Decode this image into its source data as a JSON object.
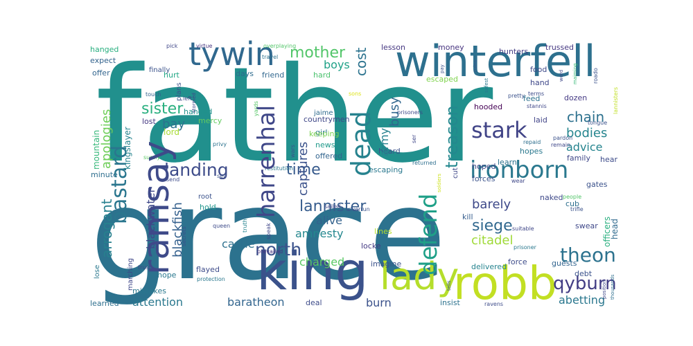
{
  "words": [
    {
      "text": "father",
      "color": "#21908d"
    },
    {
      "text": "grace",
      "color": "#2c728e"
    },
    {
      "text": "king",
      "color": "#3b528b"
    },
    {
      "text": "robb",
      "color": "#c2df23"
    },
    {
      "text": "winterfell",
      "color": "#2d708e"
    },
    {
      "text": "lady",
      "color": "#b5de2b"
    },
    {
      "text": "ramsay",
      "color": "#3e4a89"
    },
    {
      "text": "tywin",
      "color": "#30688e"
    },
    {
      "text": "harrenhal",
      "color": "#3f4788"
    },
    {
      "text": "dead",
      "color": "#26828e"
    },
    {
      "text": "defend",
      "color": "#1fa088"
    },
    {
      "text": "ironborn",
      "color": "#2a788e"
    },
    {
      "text": "bastard",
      "color": "#2a768e"
    },
    {
      "text": "treason",
      "color": "#23888e"
    },
    {
      "text": "stark",
      "color": "#414487"
    },
    {
      "text": "mother",
      "color": "#52c569"
    },
    {
      "text": "sister",
      "color": "#29af7f"
    },
    {
      "text": "landing",
      "color": "#3e4c8a"
    },
    {
      "text": "theon",
      "color": "#2c728e"
    },
    {
      "text": "qyburn",
      "color": "#433e85"
    },
    {
      "text": "north",
      "color": "#3b528b"
    },
    {
      "text": "lannister",
      "color": "#365c8d"
    },
    {
      "text": "siege",
      "color": "#31688e"
    },
    {
      "text": "time",
      "color": "#375a8c"
    },
    {
      "text": "bay",
      "color": "#2c738e"
    },
    {
      "text": "chain",
      "color": "#2d718e"
    },
    {
      "text": "bodies",
      "color": "#25858e"
    },
    {
      "text": "advice",
      "color": "#25848e"
    },
    {
      "text": "arrogant",
      "color": "#27808e"
    },
    {
      "text": "apologies",
      "color": "#6ece58"
    },
    {
      "text": "captures",
      "color": "#3b528b"
    },
    {
      "text": "army",
      "color": "#26818e"
    },
    {
      "text": "busy",
      "color": "#31678e"
    },
    {
      "text": "boys",
      "color": "#1fa187"
    },
    {
      "text": "cost",
      "color": "#2c738e"
    },
    {
      "text": "citadel",
      "color": "#a0da39"
    },
    {
      "text": "barely",
      "color": "#3e4989"
    },
    {
      "text": "alive",
      "color": "#33628d"
    },
    {
      "text": "amnesty",
      "color": "#24878e"
    },
    {
      "text": "castle",
      "color": "#2d708e"
    },
    {
      "text": "charged",
      "color": "#5ac864"
    },
    {
      "text": "blackwater",
      "color": "#3f4889"
    },
    {
      "text": "blackfish",
      "color": "#34608d"
    },
    {
      "text": "attention",
      "color": "#2a788e"
    },
    {
      "text": "baratheon",
      "color": "#32658e"
    },
    {
      "text": "burn",
      "color": "#3b528b"
    },
    {
      "text": "abetting",
      "color": "#2a778e"
    },
    {
      "text": "kingslayer",
      "color": "#25838e"
    },
    {
      "text": "mountain",
      "color": "#35b779"
    },
    {
      "text": "lord",
      "color": "#a8db34"
    },
    {
      "text": "hanged",
      "color": "#29af7f"
    },
    {
      "text": "expect",
      "color": "#33638d"
    },
    {
      "text": "offer",
      "color": "#32658e"
    },
    {
      "text": "hurt",
      "color": "#22a785"
    },
    {
      "text": "finally",
      "color": "#3b528b"
    },
    {
      "text": "friend",
      "color": "#31678e"
    },
    {
      "text": "days",
      "color": "#2f6c8e"
    },
    {
      "text": "lesson",
      "color": "#453781"
    },
    {
      "text": "money",
      "color": "#46337f"
    },
    {
      "text": "hunters",
      "color": "#433d84"
    },
    {
      "text": "trussed",
      "color": "#453882"
    },
    {
      "text": "escaped",
      "color": "#7fd34e"
    },
    {
      "text": "hard",
      "color": "#4ac16d"
    },
    {
      "text": "food",
      "color": "#3e4a89"
    },
    {
      "text": "hand",
      "color": "#3f4889"
    },
    {
      "text": "feed",
      "color": "#2c718e"
    },
    {
      "text": "laid",
      "color": "#414487"
    },
    {
      "text": "hooded",
      "color": "#440154"
    },
    {
      "text": "dozen",
      "color": "#443983"
    },
    {
      "text": "hopes",
      "color": "#2a788e"
    },
    {
      "text": "family",
      "color": "#3f4788"
    },
    {
      "text": "hear",
      "color": "#3e4c8a"
    },
    {
      "text": "gates",
      "color": "#3b528b"
    },
    {
      "text": "cub",
      "color": "#2e6f8e"
    },
    {
      "text": "countrymen",
      "color": "#3f4788"
    },
    {
      "text": "jaime",
      "color": "#2f6b8e"
    },
    {
      "text": "girl",
      "color": "#2a788e"
    },
    {
      "text": "keeping",
      "color": "#7ad151"
    },
    {
      "text": "news",
      "color": "#1f998a"
    },
    {
      "text": "offered",
      "color": "#32648e"
    },
    {
      "text": "escaping",
      "color": "#2a788e"
    },
    {
      "text": "hoped",
      "color": "#3f4889"
    },
    {
      "text": "forces",
      "color": "#3b528b"
    },
    {
      "text": "kill",
      "color": "#365d8d"
    },
    {
      "text": "naked",
      "color": "#3e4989"
    },
    {
      "text": "mercy",
      "color": "#63cb5f"
    },
    {
      "text": "handed",
      "color": "#20928c"
    },
    {
      "text": "lost",
      "color": "#453882"
    },
    {
      "text": "minute",
      "color": "#2e6e8e"
    },
    {
      "text": "hold",
      "color": "#1f958b"
    },
    {
      "text": "root",
      "color": "#3b528b"
    },
    {
      "text": "locke",
      "color": "#443a83"
    },
    {
      "text": "lines",
      "color": "#b5de2b"
    },
    {
      "text": "heard",
      "color": "#3b528b"
    },
    {
      "text": "cut",
      "color": "#3f4788"
    },
    {
      "text": "learn",
      "color": "#2c728e"
    },
    {
      "text": "force",
      "color": "#3e4c8a"
    },
    {
      "text": "guests",
      "color": "#32648e"
    },
    {
      "text": "debt",
      "color": "#3b528b"
    },
    {
      "text": "officers",
      "color": "#29af7f"
    },
    {
      "text": "head",
      "color": "#306a8e"
    },
    {
      "text": "swear",
      "color": "#3f4889"
    },
    {
      "text": "flayed",
      "color": "#3e4c8a"
    },
    {
      "text": "hope",
      "color": "#2a788e"
    },
    {
      "text": "marching",
      "color": "#3f4788"
    },
    {
      "text": "mistakes",
      "color": "#2a788e"
    },
    {
      "text": "lose",
      "color": "#2a788e"
    },
    {
      "text": "imagine",
      "color": "#3b528b"
    },
    {
      "text": "delivered",
      "color": "#25838e"
    },
    {
      "text": "learned",
      "color": "#2e6f8e"
    },
    {
      "text": "deal",
      "color": "#3e4c8a"
    },
    {
      "text": "insist",
      "color": "#2c728e"
    },
    {
      "text": "pick",
      "color": "#3f4788"
    },
    {
      "text": "virtue",
      "color": "#46337f"
    },
    {
      "text": "overplaying",
      "color": "#52c569"
    },
    {
      "text": "travel",
      "color": "#2c728e"
    },
    {
      "text": "touch",
      "color": "#33638d"
    },
    {
      "text": "plans",
      "color": "#3b528b"
    },
    {
      "text": "left",
      "color": "#3e4a89"
    },
    {
      "text": "stormed",
      "color": "#3f4788"
    },
    {
      "text": "yards",
      "color": "#56c667"
    },
    {
      "text": "sons",
      "color": "#dde318"
    },
    {
      "text": "wars",
      "color": "#3b528b"
    },
    {
      "text": "prisoners",
      "color": "#3e4a89"
    },
    {
      "text": "ser",
      "color": "#3f4788"
    },
    {
      "text": "pretty",
      "color": "#3b528b"
    },
    {
      "text": "terms",
      "color": "#3e4c8a"
    },
    {
      "text": "stannis",
      "color": "#3f4788"
    },
    {
      "text": "repaid",
      "color": "#2e6f8e"
    },
    {
      "text": "pardon",
      "color": "#3b528b"
    },
    {
      "text": "remain",
      "color": "#3f4788"
    },
    {
      "text": "tongue",
      "color": "#3b528b"
    },
    {
      "text": "lannisters",
      "color": "#c0df25"
    },
    {
      "text": "maiming",
      "color": "#38b977"
    },
    {
      "text": "roado",
      "color": "#3b528b"
    },
    {
      "text": "word",
      "color": "#3f4788"
    },
    {
      "text": "surely",
      "color": "#5ac864"
    },
    {
      "text": "privy",
      "color": "#2c728e"
    },
    {
      "text": "send",
      "color": "#3e4c8a"
    },
    {
      "text": "set",
      "color": "#3b528b"
    },
    {
      "text": "restitution",
      "color": "#2a788e"
    },
    {
      "text": "truth",
      "color": "#25838e"
    },
    {
      "text": "secrets",
      "color": "#3b528b"
    },
    {
      "text": "queen",
      "color": "#3e4c8a"
    },
    {
      "text": "speak",
      "color": "#3f4788"
    },
    {
      "text": "prevailed",
      "color": "#46337f"
    },
    {
      "text": "sailed",
      "color": "#3f4788"
    },
    {
      "text": "riverrun",
      "color": "#3b528b"
    },
    {
      "text": "returned",
      "color": "#2e6f8e"
    },
    {
      "text": "safest",
      "color": "#2a788e"
    },
    {
      "text": "ruins",
      "color": "#3b528b"
    },
    {
      "text": "wear",
      "color": "#3f4788"
    },
    {
      "text": "people",
      "color": "#52c569"
    },
    {
      "text": "trifle",
      "color": "#3b528b"
    },
    {
      "text": "suitable",
      "color": "#3f4788"
    },
    {
      "text": "prisoner",
      "color": "#2a788e"
    },
    {
      "text": "pay",
      "color": "#3b528b"
    },
    {
      "text": "soldiers",
      "color": "#cde11d"
    },
    {
      "text": "ravens",
      "color": "#3e4c8a"
    },
    {
      "text": "trust",
      "color": "#3f4788"
    },
    {
      "text": "protection",
      "color": "#2a788e"
    },
    {
      "text": "tells",
      "color": "#3b528b"
    },
    {
      "text": "position",
      "color": "#3f4788"
    },
    {
      "text": "thousands",
      "color": "#2e6f8e"
    },
    {
      "text": "partake",
      "color": "#3b528b"
    }
  ]
}
